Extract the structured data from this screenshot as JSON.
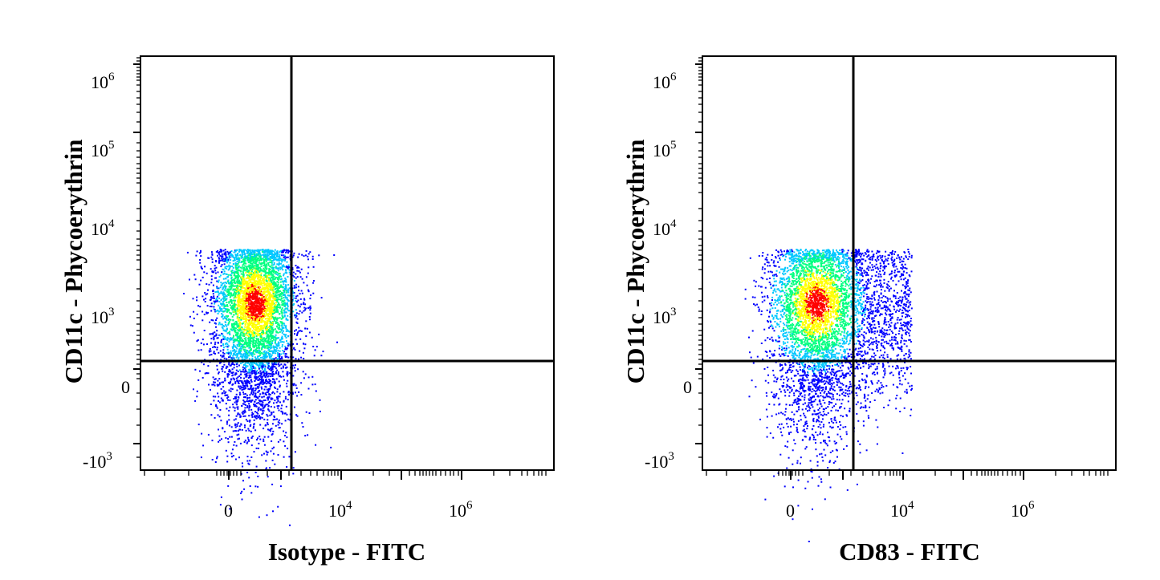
{
  "figure": {
    "background": "#ffffff",
    "panel_count": 2
  },
  "chart_data": [
    {
      "type": "scatter",
      "subtype": "flow-cytometry-density-dot-plot",
      "title": "",
      "xlabel": "Isotype - FITC",
      "ylabel": "CD11c - Phycoerythrin",
      "x_scale": "biexponential",
      "y_scale": "biexponential",
      "x_tick_labels": [
        {
          "base": "0",
          "exp": ""
        },
        {
          "base": "10",
          "exp": "4"
        },
        {
          "base": "10",
          "exp": "6"
        }
      ],
      "y_tick_labels": [
        {
          "base": "10",
          "exp": "6"
        },
        {
          "base": "10",
          "exp": "5"
        },
        {
          "base": "10",
          "exp": "4"
        },
        {
          "base": "10",
          "exp": "3"
        },
        {
          "base": "0",
          "exp": ""
        },
        {
          "base": "-10",
          "exp": "3"
        }
      ],
      "quadrant_gate": {
        "x": 2000,
        "y": 0
      },
      "population": {
        "x_center": 600,
        "x_spread": "about -300 to 3000",
        "y_center": 900,
        "y_spread": "about -1500 to 3000",
        "fraction_upper_right": "about 1%"
      },
      "color_scale": [
        "#0000ff",
        "#00c8ff",
        "#00ff80",
        "#ffff00",
        "#ff0000"
      ],
      "legend": "none",
      "grid": false
    },
    {
      "type": "scatter",
      "subtype": "flow-cytometry-density-dot-plot",
      "title": "",
      "xlabel": "CD83 - FITC",
      "ylabel": "CD11c - Phycoerythrin",
      "x_scale": "biexponential",
      "y_scale": "biexponential",
      "x_tick_labels": [
        {
          "base": "0",
          "exp": ""
        },
        {
          "base": "10",
          "exp": "4"
        },
        {
          "base": "10",
          "exp": "6"
        }
      ],
      "y_tick_labels": [
        {
          "base": "10",
          "exp": "6"
        },
        {
          "base": "10",
          "exp": "5"
        },
        {
          "base": "10",
          "exp": "4"
        },
        {
          "base": "10",
          "exp": "3"
        },
        {
          "base": "0",
          "exp": ""
        },
        {
          "base": "-10",
          "exp": "3"
        }
      ],
      "quadrant_gate": {
        "x": 2000,
        "y": 0
      },
      "population": {
        "x_center": 500,
        "x_spread": "about -400 to 10000",
        "y_center": 900,
        "y_spread": "about -1500 to 3000",
        "fraction_upper_right": "about 15%"
      },
      "color_scale": [
        "#0000ff",
        "#00c8ff",
        "#00ff80",
        "#ffff00",
        "#ff0000"
      ],
      "legend": "none",
      "grid": false
    }
  ]
}
